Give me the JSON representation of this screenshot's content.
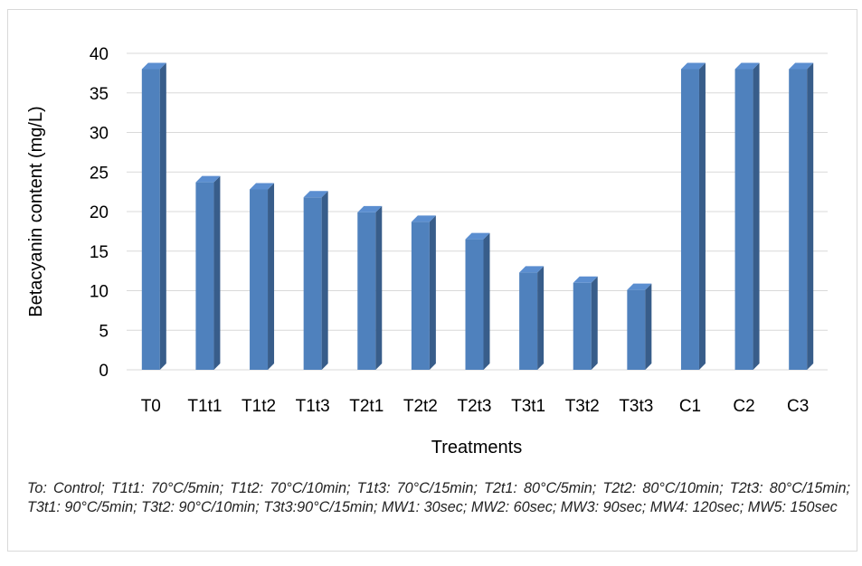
{
  "chart_data": {
    "type": "bar",
    "title": "",
    "xlabel": "Treatments",
    "ylabel": "Betacyanin content (mg/L)",
    "categories": [
      "T0",
      "T1t1",
      "T1t2",
      "T1t3",
      "T2t1",
      "T2t2",
      "T2t3",
      "T3t1",
      "T3t2",
      "T3t3",
      "C1",
      "C2",
      "C3"
    ],
    "values": [
      38,
      23.7,
      22.8,
      21.8,
      19.9,
      18.7,
      16.5,
      12.3,
      11.0,
      10.1,
      38,
      38,
      38
    ],
    "ylim": [
      0,
      40
    ],
    "yticks": [
      0,
      5,
      10,
      15,
      20,
      25,
      30,
      35,
      40
    ],
    "grid": true,
    "legend": "none",
    "colors": {
      "bar_front": "#4f81bd",
      "bar_side": "#385d8a",
      "bar_top": "#5b8ed0",
      "grid": "#d9d9d9"
    }
  },
  "caption": "To: Control; T1t1: 70°C/5min; T1t2: 70°C/10min; T1t3: 70°C/15min; T2t1: 80°C/5min; T2t2: 80°C/10min; T2t3: 80°C/15min; T3t1: 90°C/5min; T3t2: 90°C/10min; T3t3:90°C/15min; MW1: 30sec; MW2: 60sec; MW3: 90sec; MW4: 120sec; MW5: 150sec"
}
